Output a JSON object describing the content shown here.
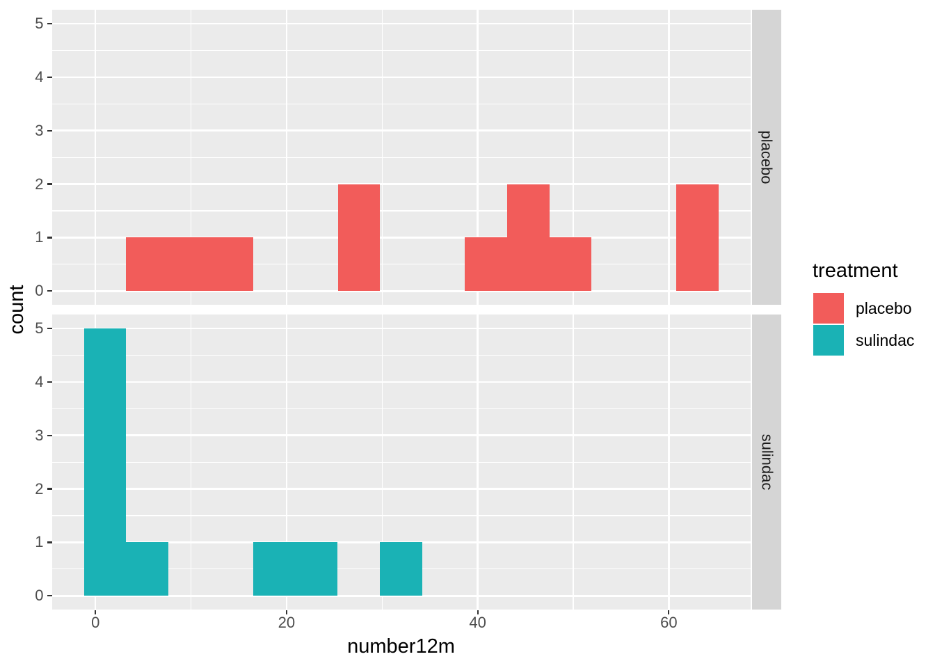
{
  "chart_data": {
    "type": "histogram",
    "xlabel": "number12m",
    "ylabel": "count",
    "facet_variable": "treatment",
    "facet_strip_position": "right",
    "grid": true,
    "x_ticks": [
      0,
      20,
      40,
      60
    ],
    "x_minor_ticks": [
      10,
      30,
      50
    ],
    "y_ticks": [
      0,
      1,
      2,
      3,
      4,
      5
    ],
    "y_minor_ticks": [
      0.5,
      1.5,
      2.5,
      3.5,
      4.5
    ],
    "xlim": [
      -4.53,
      68.53
    ],
    "ylim": [
      -0.26,
      5.26
    ],
    "binwidth": 4.429,
    "facets": [
      {
        "label": "placebo",
        "color": "#F25C5A",
        "bins": [
          {
            "x0": 3.214,
            "x1": 7.643,
            "count": 1
          },
          {
            "x0": 7.643,
            "x1": 12.071,
            "count": 1
          },
          {
            "x0": 12.071,
            "x1": 16.5,
            "count": 1
          },
          {
            "x0": 25.357,
            "x1": 29.786,
            "count": 2
          },
          {
            "x0": 38.643,
            "x1": 43.071,
            "count": 1
          },
          {
            "x0": 43.071,
            "x1": 47.5,
            "count": 2
          },
          {
            "x0": 47.5,
            "x1": 51.929,
            "count": 1
          },
          {
            "x0": 60.786,
            "x1": 65.214,
            "count": 2
          }
        ]
      },
      {
        "label": "sulindac",
        "color": "#1AB2B5",
        "bins": [
          {
            "x0": -1.214,
            "x1": 3.214,
            "count": 5
          },
          {
            "x0": 3.214,
            "x1": 7.643,
            "count": 1
          },
          {
            "x0": 16.5,
            "x1": 20.929,
            "count": 1
          },
          {
            "x0": 20.929,
            "x1": 25.357,
            "count": 1
          },
          {
            "x0": 29.786,
            "x1": 34.214,
            "count": 1
          }
        ]
      }
    ],
    "legend": {
      "title": "treatment",
      "position": "right",
      "entries": [
        {
          "label": "placebo",
          "color": "#F25C5A"
        },
        {
          "label": "sulindac",
          "color": "#1AB2B5"
        }
      ]
    }
  },
  "style": {
    "figure_bg": "#FFFFFF",
    "panel_bg": "#EBEBEB",
    "grid_color": "#FFFFFF",
    "strip_bg": "#D5D5D5",
    "strip_text": "#1A1A1A",
    "axis_text": "#4D4D4D",
    "axis_title": "#000000",
    "tick_mark": "#333333"
  }
}
